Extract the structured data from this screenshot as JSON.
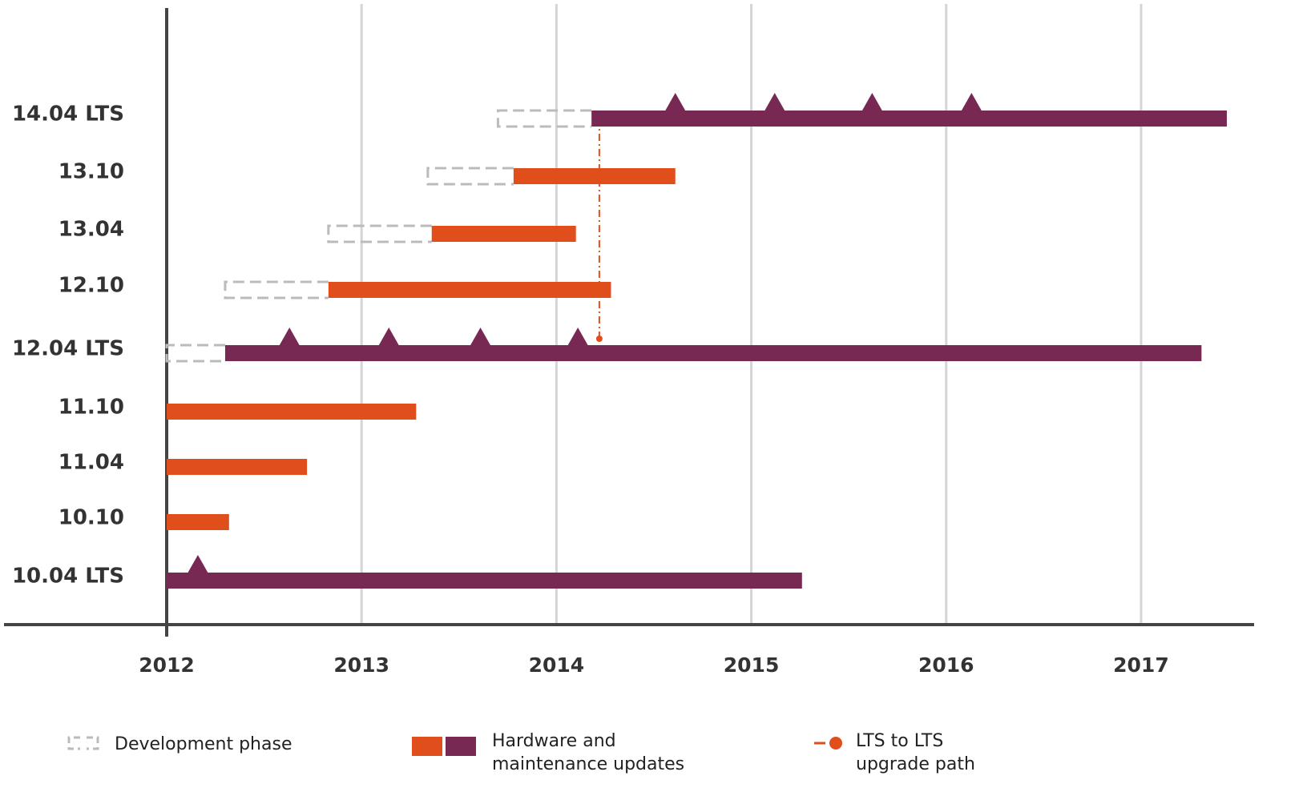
{
  "chart_data": {
    "type": "gantt",
    "xlim": [
      2012,
      2017.58
    ],
    "xticks": [
      2012,
      2013,
      2014,
      2015,
      2016,
      2017
    ],
    "grid": true,
    "colors": {
      "support": "#e04e1b",
      "lts": "#772953",
      "dev": "#bbbbbb"
    },
    "rows": [
      {
        "label": "14.04 LTS",
        "lts": true,
        "dev": [
          2013.7,
          2014.18
        ],
        "support": [
          2014.18,
          2017.44
        ],
        "milestones": [
          2014.61,
          2015.12,
          2015.62,
          2016.13
        ]
      },
      {
        "label": "13.10",
        "lts": false,
        "dev": [
          2013.34,
          2013.78
        ],
        "support": [
          2013.78,
          2014.61
        ],
        "milestones": []
      },
      {
        "label": "13.04",
        "lts": false,
        "dev": [
          2012.83,
          2013.36
        ],
        "support": [
          2013.36,
          2014.1
        ],
        "milestones": []
      },
      {
        "label": "12.10",
        "lts": false,
        "dev": [
          2012.3,
          2012.83
        ],
        "support": [
          2012.83,
          2014.28
        ],
        "milestones": []
      },
      {
        "label": "12.04 LTS",
        "lts": true,
        "dev": [
          2012.0,
          2012.3
        ],
        "support": [
          2012.3,
          2017.31
        ],
        "milestones": [
          2012.63,
          2013.14,
          2013.61,
          2014.11
        ]
      },
      {
        "label": "11.10",
        "lts": false,
        "dev": null,
        "support": [
          2012.0,
          2013.28
        ],
        "milestones": []
      },
      {
        "label": "11.04",
        "lts": false,
        "dev": null,
        "support": [
          2012.0,
          2012.72
        ],
        "milestones": []
      },
      {
        "label": "10.10",
        "lts": false,
        "dev": null,
        "support": [
          2012.0,
          2012.32
        ],
        "milestones": []
      },
      {
        "label": "10.04 LTS",
        "lts": true,
        "dev": null,
        "support": [
          2012.0,
          2015.26
        ],
        "milestones": [
          2012.16
        ]
      }
    ],
    "upgrade_path": {
      "x": 2014.22,
      "from": "12.04 LTS",
      "to": "14.04 LTS"
    },
    "legend": [
      {
        "label": [
          "Development phase"
        ]
      },
      {
        "label": [
          "Hardware and",
          "maintenance updates"
        ]
      },
      {
        "label": [
          "LTS to LTS",
          "upgrade path"
        ]
      }
    ]
  }
}
